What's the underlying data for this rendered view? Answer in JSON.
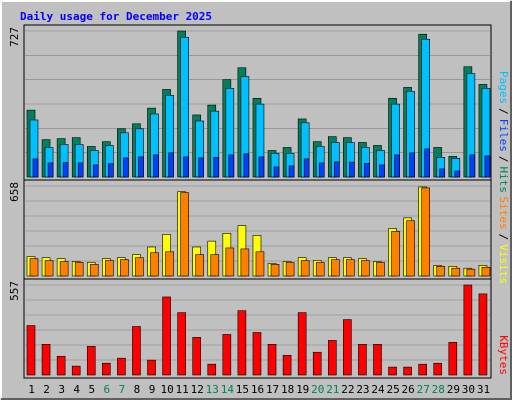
{
  "chart_data": {
    "type": "bar",
    "title": "Daily usage for December 2025",
    "title_color": "#0000ff",
    "categories": [
      "1",
      "2",
      "3",
      "4",
      "5",
      "6",
      "7",
      "8",
      "9",
      "10",
      "11",
      "12",
      "13",
      "14",
      "15",
      "16",
      "17",
      "18",
      "19",
      "20",
      "21",
      "22",
      "23",
      "24",
      "25",
      "26",
      "27",
      "28",
      "29",
      "30",
      "31"
    ],
    "category_colors": [
      "#000000",
      "#000000",
      "#000000",
      "#000000",
      "#000000",
      "#00805c",
      "#00805c",
      "#000000",
      "#000000",
      "#000000",
      "#000000",
      "#000000",
      "#00805c",
      "#00805c",
      "#000000",
      "#000000",
      "#000000",
      "#000000",
      "#000000",
      "#00805c",
      "#00805c",
      "#000000",
      "#000000",
      "#000000",
      "#000000",
      "#000000",
      "#00805c",
      "#00805c",
      "#000000",
      "#000000",
      "#000000"
    ],
    "separator": "/",
    "panels": [
      {
        "ylim": [
          0,
          727
        ],
        "yticks": [
          727
        ],
        "series": [
          {
            "name": "Hits",
            "color": "#00805c",
            "values": [
              333,
              186,
              191,
              196,
              152,
              176,
              240,
              265,
              343,
              436,
              727,
              309,
              358,
              485,
              544,
              392,
              132,
              147,
              289,
              176,
              201,
              196,
              172,
              157,
              392,
              446,
              711,
              147,
              103,
              549,
              461
            ]
          },
          {
            "name": "Files",
            "color": "#0040ff",
            "values": [
              90,
              70,
              72,
              70,
              60,
              66,
              95,
              100,
              110,
              120,
              100,
              95,
              98,
              110,
              115,
              100,
              50,
              55,
              90,
              70,
              75,
              74,
              68,
              60,
              110,
              120,
              140,
              40,
              30,
              110,
              105
            ]
          },
          {
            "name": "Pages",
            "color": "#00c0ff",
            "values": [
              284,
              147,
              162,
              162,
              132,
              157,
              220,
              240,
              314,
              407,
              696,
              279,
              328,
              441,
              500,
              363,
              118,
              118,
              270,
              152,
              172,
              172,
              147,
              132,
              363,
              426,
              686,
              98,
              93,
              515,
              441
            ]
          }
        ],
        "legend_order": [
          2,
          1,
          0
        ],
        "draw_order": [
          0,
          2,
          1
        ]
      },
      {
        "ylim": [
          0,
          658
        ],
        "yticks": [
          658
        ],
        "series": [
          {
            "name": "Visits",
            "color": "#ffff00",
            "values": [
              142,
              134,
              127,
              106,
              99,
              127,
              134,
              156,
              212,
              304,
              616,
              212,
              255,
              312,
              368,
              297,
              92,
              106,
              134,
              113,
              134,
              134,
              127,
              106,
              347,
              425,
              651,
              78,
              71,
              57,
              78
            ]
          },
          {
            "name": "Sites",
            "color": "#ff8000",
            "values": [
              127,
              113,
              106,
              99,
              85,
              113,
              120,
              134,
              170,
              177,
              609,
              156,
              156,
              205,
              198,
              177,
              85,
              99,
              113,
              99,
              120,
              120,
              113,
              99,
              326,
              404,
              644,
              71,
              57,
              50,
              64
            ]
          }
        ],
        "legend_order": [
          1,
          0
        ],
        "draw_order": [
          0,
          1
        ]
      },
      {
        "ylim": [
          0,
          557
        ],
        "yticks": [
          557
        ],
        "series": [
          {
            "name": "KBytes",
            "color": "#ff0000",
            "values": [
              306,
              190,
              116,
              55,
              177,
              73,
              104,
              300,
              92,
              483,
              386,
              233,
              67,
              251,
              398,
              263,
              190,
              122,
              386,
              141,
              214,
              343,
              190,
              190,
              49,
              49,
              67,
              73,
              202,
              557,
              502
            ]
          }
        ],
        "legend_order": [
          0
        ],
        "draw_order": [
          0
        ]
      }
    ]
  }
}
